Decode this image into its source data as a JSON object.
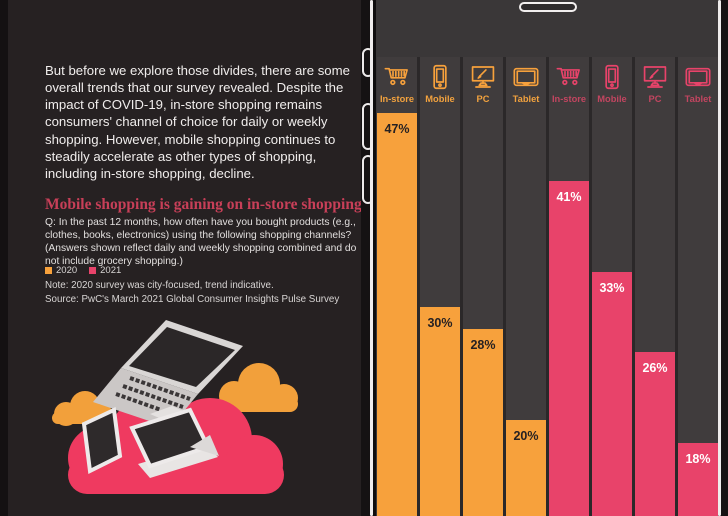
{
  "left_panel": {
    "intro_text": "But before we explore those divides, there are some overall trends that our survey revealed. Despite the impact of COVID-19, in-store shopping remains consumers' channel of choice for daily or weekly shopping. However, mobile shopping continues to steadily accelerate as other types of shopping, including in-store shopping, decline.",
    "heading": "Mobile shopping is gaining on in-store shopping",
    "question": "Q: In the past 12 months, how often have you bought products (e.g., clothes, books, electronics) using the following shopping channels? (Answers shown reflect daily and weekly shopping combined and do not include grocery shopping.)",
    "legend": [
      {
        "label": "2020",
        "color": "#F7A13C"
      },
      {
        "label": "2021",
        "color": "#E8436A"
      }
    ],
    "note": "Note: 2020 survey was city-focused, trend indicative.",
    "source": "Source: PwC's March 2021 Global Consumer Insights Pulse Survey",
    "illustration": "devices-on-clouds (laptop, tablet and phone on a pink cloud with orange clouds)"
  },
  "chart_data": {
    "type": "bar",
    "title": "Mobile shopping is gaining on in-store shopping",
    "categories": [
      "In-store",
      "Mobile",
      "PC",
      "Tablet"
    ],
    "series": [
      {
        "name": "2020",
        "color": "#F7A13C",
        "label_color": "#F2A23E",
        "value_text_color": "#262122",
        "values": [
          47,
          30,
          28,
          20
        ]
      },
      {
        "name": "2021",
        "color": "#E8436A",
        "label_color": "#C24560",
        "value_text_color": "#FFFFFF",
        "values": [
          41,
          33,
          26,
          18
        ]
      }
    ],
    "value_suffix": "%",
    "ylabel": "",
    "xlabel": "",
    "legend_position": "left-panel",
    "grid": false,
    "columns": [
      {
        "label": "In-store",
        "icon": "cart-icon",
        "year": "2020",
        "value": 47
      },
      {
        "label": "Mobile",
        "icon": "mobile-icon",
        "year": "2020",
        "value": 30
      },
      {
        "label": "PC",
        "icon": "pc-icon",
        "year": "2020",
        "value": 28
      },
      {
        "label": "Tablet",
        "icon": "tablet-icon",
        "year": "2020",
        "value": 20
      },
      {
        "label": "In-store",
        "icon": "cart-icon",
        "year": "2021",
        "value": 41
      },
      {
        "label": "Mobile",
        "icon": "mobile-icon",
        "year": "2021",
        "value": 33
      },
      {
        "label": "PC",
        "icon": "pc-icon",
        "year": "2021",
        "value": 26
      },
      {
        "label": "Tablet",
        "icon": "tablet-icon",
        "year": "2021",
        "value": 18
      }
    ]
  },
  "colors": {
    "page_bg": "#141112",
    "panel_bg": "#262122",
    "screen_bg": "#3A3738",
    "column_track": "#403C3D",
    "heading_red": "#C83F58",
    "pink_cloud": "#EF3A60",
    "orange_cloud": "#F2A03B"
  }
}
